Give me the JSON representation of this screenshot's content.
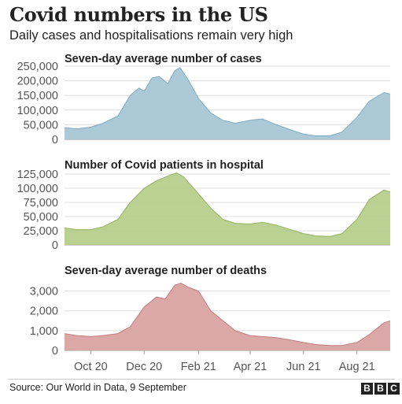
{
  "header": {
    "title": "Covid numbers in the US",
    "subtitle": "Daily cases and hospitalisations remain very high"
  },
  "footer": {
    "source": "Source: Our World in Data, 9 September",
    "logo_letters": [
      "B",
      "B",
      "C"
    ]
  },
  "x_axis": {
    "type": "date",
    "range": [
      "2020-09-01",
      "2021-09-08"
    ],
    "tick_labels": [
      "Oct 20",
      "Dec 20",
      "Feb 21",
      "Apr 21",
      "Jun 21",
      "Aug 21"
    ],
    "tick_dates": [
      "2020-10-01",
      "2020-12-01",
      "2021-02-01",
      "2021-04-01",
      "2021-06-01",
      "2021-08-01"
    ]
  },
  "chart_data": [
    {
      "type": "area",
      "title": "Seven-day average number of cases",
      "color": "#a6c6d5",
      "stroke": "#7faabd",
      "ylim": [
        0,
        250000
      ],
      "yticks": [
        0,
        50000,
        100000,
        150000,
        200000,
        250000
      ],
      "ytick_labels": [
        "0",
        "50,000",
        "100,000",
        "150,000",
        "200,000",
        "250,000"
      ],
      "grid": true,
      "x": [
        "2020-09-01",
        "2020-09-15",
        "2020-10-01",
        "2020-10-15",
        "2020-11-01",
        "2020-11-15",
        "2020-11-25",
        "2020-12-01",
        "2020-12-10",
        "2020-12-18",
        "2020-12-28",
        "2021-01-05",
        "2021-01-11",
        "2021-01-20",
        "2021-02-01",
        "2021-02-15",
        "2021-03-01",
        "2021-03-15",
        "2021-04-01",
        "2021-04-15",
        "2021-05-01",
        "2021-05-15",
        "2021-06-01",
        "2021-06-15",
        "2021-07-01",
        "2021-07-15",
        "2021-08-01",
        "2021-08-15",
        "2021-09-01",
        "2021-09-08"
      ],
      "y": [
        40000,
        36000,
        42000,
        55000,
        80000,
        150000,
        175000,
        165000,
        210000,
        215000,
        190000,
        235000,
        245000,
        205000,
        140000,
        90000,
        65000,
        55000,
        65000,
        70000,
        50000,
        35000,
        18000,
        12000,
        12000,
        25000,
        75000,
        130000,
        160000,
        155000
      ]
    },
    {
      "type": "area",
      "title": "Number of Covid patients in hospital",
      "color": "#b6cf8c",
      "stroke": "#93b262",
      "ylim": [
        0,
        125000
      ],
      "yticks": [
        0,
        25000,
        50000,
        75000,
        100000,
        125000
      ],
      "ytick_labels": [
        "0",
        "25,000",
        "50,000",
        "75,000",
        "100,000",
        "125,000"
      ],
      "grid": true,
      "x": [
        "2020-09-01",
        "2020-09-15",
        "2020-10-01",
        "2020-10-15",
        "2020-11-01",
        "2020-11-15",
        "2020-12-01",
        "2020-12-15",
        "2021-01-01",
        "2021-01-07",
        "2021-01-15",
        "2021-02-01",
        "2021-02-15",
        "2021-03-01",
        "2021-03-15",
        "2021-04-01",
        "2021-04-15",
        "2021-05-01",
        "2021-05-15",
        "2021-06-01",
        "2021-06-15",
        "2021-07-01",
        "2021-07-15",
        "2021-08-01",
        "2021-08-15",
        "2021-09-01",
        "2021-09-08"
      ],
      "y": [
        30000,
        27000,
        27000,
        32000,
        45000,
        75000,
        100000,
        113000,
        124000,
        127000,
        120000,
        90000,
        65000,
        45000,
        38000,
        37000,
        40000,
        35000,
        28000,
        20000,
        16000,
        15000,
        20000,
        45000,
        80000,
        97000,
        93000
      ]
    },
    {
      "type": "area",
      "title": "Seven-day average number of deaths",
      "color": "#d9a3a2",
      "stroke": "#c07c7b",
      "ylim": [
        0,
        3500
      ],
      "yticks": [
        0,
        1000,
        2000,
        3000
      ],
      "ytick_labels": [
        "0",
        "1,000",
        "2,000",
        "3,000"
      ],
      "grid": true,
      "x": [
        "2020-09-01",
        "2020-09-15",
        "2020-10-01",
        "2020-10-15",
        "2020-11-01",
        "2020-11-15",
        "2020-12-01",
        "2020-12-15",
        "2020-12-25",
        "2021-01-05",
        "2021-01-12",
        "2021-01-20",
        "2021-02-01",
        "2021-02-15",
        "2021-03-01",
        "2021-03-15",
        "2021-04-01",
        "2021-04-15",
        "2021-05-01",
        "2021-05-15",
        "2021-06-01",
        "2021-06-15",
        "2021-07-01",
        "2021-07-15",
        "2021-08-01",
        "2021-08-15",
        "2021-09-01",
        "2021-09-08"
      ],
      "y": [
        850,
        750,
        700,
        750,
        850,
        1200,
        2200,
        2700,
        2600,
        3300,
        3400,
        3200,
        3000,
        2000,
        1500,
        1000,
        750,
        700,
        650,
        550,
        400,
        300,
        250,
        250,
        400,
        800,
        1400,
        1500
      ]
    }
  ]
}
